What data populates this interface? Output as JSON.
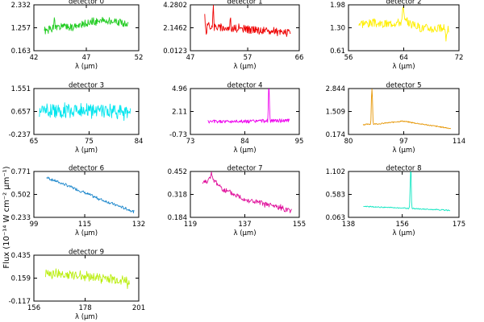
{
  "figure": {
    "ylabel": "Flux (10⁻¹⁴ W cm⁻² μm⁻¹)"
  },
  "chart_data": [
    {
      "type": "line",
      "title": "detector 0",
      "xlabel": "λ (μm)",
      "xticks": [
        42,
        47,
        52
      ],
      "yticks": [
        "0.163",
        "1.257",
        "2.332"
      ],
      "xlim": [
        42,
        52
      ],
      "ylim": [
        0.163,
        2.332
      ],
      "xrange": [
        43.0,
        51.0
      ],
      "color": "#22cc22",
      "seed": 1,
      "profile": [
        [
          0,
          1.1
        ],
        [
          0.15,
          1.25
        ],
        [
          0.4,
          1.32
        ],
        [
          0.6,
          1.55
        ],
        [
          0.8,
          1.58
        ],
        [
          1,
          1.4
        ]
      ],
      "noise": 0.22,
      "spikes": [
        [
          0.12,
          0.55
        ]
      ]
    },
    {
      "type": "line",
      "title": "detector 1",
      "xlabel": "λ (μm)",
      "xticks": [
        47,
        57,
        66
      ],
      "yticks": [
        "0.0123",
        "2.1462",
        "4.2802"
      ],
      "xlim": [
        47,
        66
      ],
      "ylim": [
        0.0123,
        4.2802
      ],
      "xrange": [
        49.5,
        64.5
      ],
      "color": "#ee0000",
      "seed": 2,
      "profile": [
        [
          0,
          2.4
        ],
        [
          0.2,
          2.2
        ],
        [
          0.5,
          2.0
        ],
        [
          0.8,
          1.8
        ],
        [
          1,
          1.7
        ]
      ],
      "noise": 0.45,
      "spikes": [
        [
          0.0,
          1.1
        ],
        [
          0.1,
          2.1
        ],
        [
          0.02,
          -1.2
        ],
        [
          0.3,
          0.9
        ]
      ]
    },
    {
      "type": "line",
      "title": "detector 2",
      "xlabel": "λ (μm)",
      "xticks": [
        56,
        64,
        72
      ],
      "yticks": [
        "0.61",
        "1.30",
        "1.98"
      ],
      "xlim": [
        56,
        72
      ],
      "ylim": [
        0.61,
        1.98
      ],
      "xrange": [
        57.5,
        70.5
      ],
      "color": "#ffee00",
      "seed": 3,
      "profile": [
        [
          0,
          1.45
        ],
        [
          0.3,
          1.4
        ],
        [
          0.5,
          1.5
        ],
        [
          0.7,
          1.3
        ],
        [
          1,
          1.25
        ]
      ],
      "noise": 0.16,
      "spikes": [
        [
          0.49,
          0.45
        ],
        [
          0.5,
          0.3
        ],
        [
          0.97,
          -0.3
        ]
      ]
    },
    {
      "type": "line",
      "title": "detector 3",
      "xlabel": "λ (μm)",
      "xticks": [
        65,
        75,
        84
      ],
      "yticks": [
        "-0.237",
        "0.657",
        "1.551"
      ],
      "xlim": [
        65,
        84
      ],
      "ylim": [
        -0.237,
        1.551
      ],
      "xrange": [
        66.0,
        82.5
      ],
      "color": "#00e5ee",
      "seed": 4,
      "profile": [
        [
          0,
          0.72
        ],
        [
          0.5,
          0.7
        ],
        [
          1,
          0.62
        ]
      ],
      "noise": 0.34,
      "spikes": []
    },
    {
      "type": "line",
      "title": "detector 4",
      "xlabel": "λ (μm)",
      "xticks": [
        73,
        84,
        95
      ],
      "yticks": [
        "-0.73",
        "2.11",
        "4.96"
      ],
      "xlim": [
        73,
        95
      ],
      "ylim": [
        -0.73,
        4.96
      ],
      "xrange": [
        76.5,
        93.0
      ],
      "color": "#ee00ee",
      "seed": 5,
      "profile": [
        [
          0,
          0.85
        ],
        [
          0.5,
          0.9
        ],
        [
          1,
          1.0
        ]
      ],
      "noise": 0.25,
      "spikes": [
        [
          0.745,
          3.2
        ],
        [
          0.75,
          3.6
        ],
        [
          0.755,
          1.5
        ]
      ]
    },
    {
      "type": "line",
      "title": "detector 5",
      "xlabel": "λ (μm)",
      "xticks": [
        80,
        97,
        114
      ],
      "yticks": [
        "0.174",
        "1.509",
        "2.844"
      ],
      "xlim": [
        80,
        114
      ],
      "ylim": [
        0.174,
        2.844
      ],
      "xrange": [
        84.5,
        111.5
      ],
      "color": "#e69500",
      "seed": 6,
      "profile": [
        [
          0,
          0.75
        ],
        [
          0.2,
          0.8
        ],
        [
          0.45,
          0.95
        ],
        [
          0.7,
          0.75
        ],
        [
          1,
          0.52
        ]
      ],
      "noise": 0.04,
      "spikes": [
        [
          0.1,
          1.7
        ],
        [
          0.105,
          1.3
        ],
        [
          0.095,
          0.8
        ]
      ]
    },
    {
      "type": "line",
      "title": "detector 6",
      "xlabel": "λ (μm)",
      "xticks": [
        99,
        115,
        132
      ],
      "yticks": [
        "0.233",
        "0.502",
        "0.771"
      ],
      "xlim": [
        99,
        132
      ],
      "ylim": [
        0.233,
        0.771
      ],
      "xrange": [
        103.0,
        130.5
      ],
      "color": "#1e88cc",
      "seed": 7,
      "profile": [
        [
          0,
          0.7
        ],
        [
          0.3,
          0.58
        ],
        [
          0.6,
          0.45
        ],
        [
          1,
          0.3
        ]
      ],
      "noise": 0.02,
      "spikes": []
    },
    {
      "type": "line",
      "title": "detector 7",
      "xlabel": "λ (μm)",
      "xticks": [
        119,
        137,
        155
      ],
      "yticks": [
        "0.184",
        "0.318",
        "0.452"
      ],
      "xlim": [
        119,
        155
      ],
      "ylim": [
        0.184,
        0.452
      ],
      "xrange": [
        123.0,
        152.5
      ],
      "color": "#e0129c",
      "seed": 8,
      "profile": [
        [
          0,
          0.385
        ],
        [
          0.1,
          0.415
        ],
        [
          0.25,
          0.34
        ],
        [
          0.5,
          0.285
        ],
        [
          0.75,
          0.255
        ],
        [
          1,
          0.225
        ]
      ],
      "noise": 0.02,
      "spikes": [
        [
          0.1,
          0.04
        ]
      ]
    },
    {
      "type": "line",
      "title": "detector 8",
      "xlabel": "λ (μm)",
      "xticks": [
        138,
        156,
        175
      ],
      "yticks": [
        "0.063",
        "0.583",
        "1.102"
      ],
      "xlim": [
        138,
        175
      ],
      "ylim": [
        0.063,
        1.102
      ],
      "xrange": [
        143.0,
        172.0
      ],
      "color": "#11e6c2",
      "seed": 9,
      "profile": [
        [
          0,
          0.31
        ],
        [
          0.5,
          0.27
        ],
        [
          1,
          0.22
        ]
      ],
      "noise": 0.015,
      "spikes": [
        [
          0.545,
          0.72
        ],
        [
          0.55,
          0.55
        ],
        [
          0.54,
          0.3
        ]
      ]
    },
    {
      "type": "line",
      "title": "detector 9",
      "xlabel": "λ (μm)",
      "xticks": [
        156,
        178,
        201
      ],
      "yticks": [
        "-0.117",
        "0.159",
        "0.435"
      ],
      "xlim": [
        156,
        201
      ],
      "ylim": [
        -0.117,
        0.435
      ],
      "xrange": [
        161.0,
        197.0
      ],
      "color": "#bbee11",
      "seed": 10,
      "profile": [
        [
          0,
          0.22
        ],
        [
          0.5,
          0.18
        ],
        [
          1,
          0.12
        ]
      ],
      "noise": 0.07,
      "spikes": [
        [
          0.98,
          -0.1
        ]
      ]
    }
  ]
}
